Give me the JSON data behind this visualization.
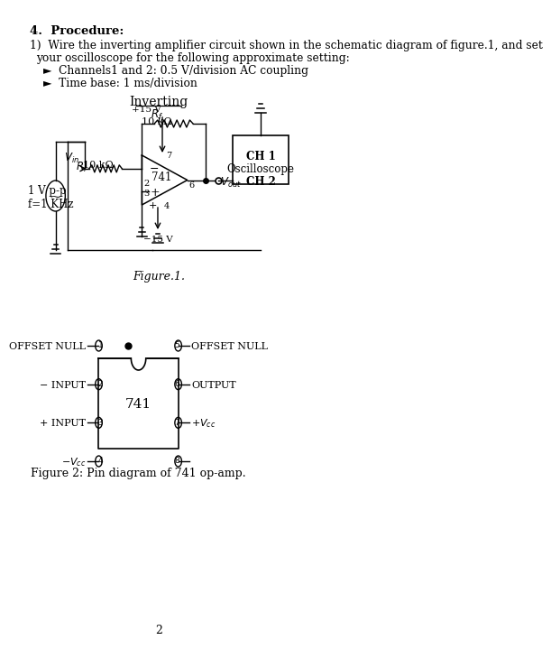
{
  "bg_color": "#ffffff",
  "text_color": "#000000",
  "page_number": "2",
  "section_header": "4.  Procedure:",
  "procedure_text_line1": "1)  Wire the inverting amplifier circuit shown in the schematic diagram of figure.1, and set",
  "procedure_text_line2": "your oscilloscope for the following approximate setting:",
  "bullet1": "►  Channels1 and 2: 0.5 V/division AC coupling",
  "bullet2": "►  Time base: 1 ms/division",
  "fig1_title": "Inverting",
  "fig1_caption": "Figure.1.",
  "fig2_caption": "Figure 2: Pin diagram of 741 op-amp.",
  "Rf_label": "$R_f$",
  "Rf_val": "10 kΩ",
  "Ri_label": "$R_i$",
  "Ri_val": "10 kΩ",
  "Vin_label": "$V_{in}$",
  "Vout_label": "$V_{out}$",
  "plus15": "+15 V",
  "minus15": "−15 V",
  "opamp_label": "741",
  "source_label1": "1 V p-p",
  "source_label2": "f=1 KHz",
  "scope_label1": "CH 2",
  "scope_label2": "Oscilloscope",
  "scope_label3": "CH 1",
  "pin_left_labels": [
    "OFFSET NULL",
    "− INPUT",
    "+ INPUT",
    "−$V_{cc}$"
  ],
  "pin_left_nums": [
    "1",
    "2",
    "3",
    "4"
  ],
  "pin_right_labels": [
    "",
    "+$V_{cc}$",
    "OUTPUT",
    "OFFSET NULL"
  ],
  "pin_right_nums": [
    "8",
    "7",
    "6",
    "5"
  ],
  "pin_center_label": "741"
}
